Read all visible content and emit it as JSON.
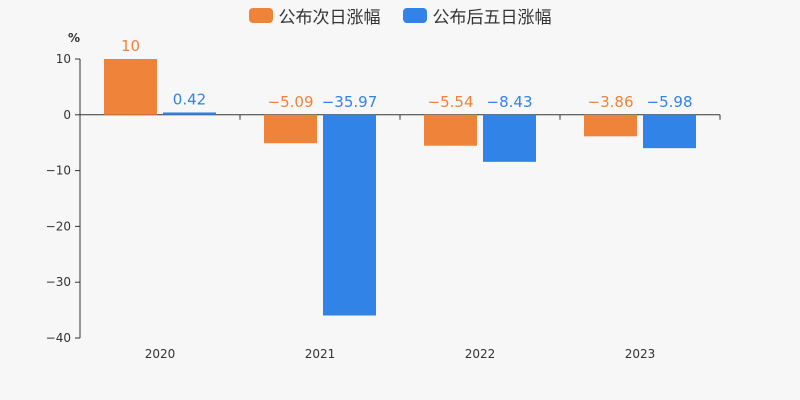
{
  "legend": {
    "items": [
      {
        "label": "公布次日涨幅",
        "color": "#f0833a"
      },
      {
        "label": "公布后五日涨幅",
        "color": "#3283e8"
      }
    ]
  },
  "chart_data": {
    "type": "bar",
    "categories": [
      "2020",
      "2021",
      "2022",
      "2023"
    ],
    "series": [
      {
        "name": "公布次日涨幅",
        "color": "#f0833a",
        "values": [
          10,
          -5.09,
          -5.54,
          -3.86
        ],
        "labels": [
          "10",
          "−5.09",
          "−5.54",
          "−3.86"
        ]
      },
      {
        "name": "公布后五日涨幅",
        "color": "#3283e8",
        "values": [
          0.42,
          -35.97,
          -8.43,
          -5.98
        ],
        "labels": [
          "0.42",
          "−35.97",
          "−8.43",
          "−5.98"
        ]
      }
    ],
    "ylabel": "%",
    "ylim": [
      -40,
      10
    ],
    "yticks": [
      10,
      0,
      -10,
      -20,
      -30,
      -40
    ],
    "ytick_labels": [
      "10",
      "0",
      "−10",
      "−20",
      "−30",
      "−40"
    ],
    "grid": false,
    "legend_position": "top-center"
  }
}
